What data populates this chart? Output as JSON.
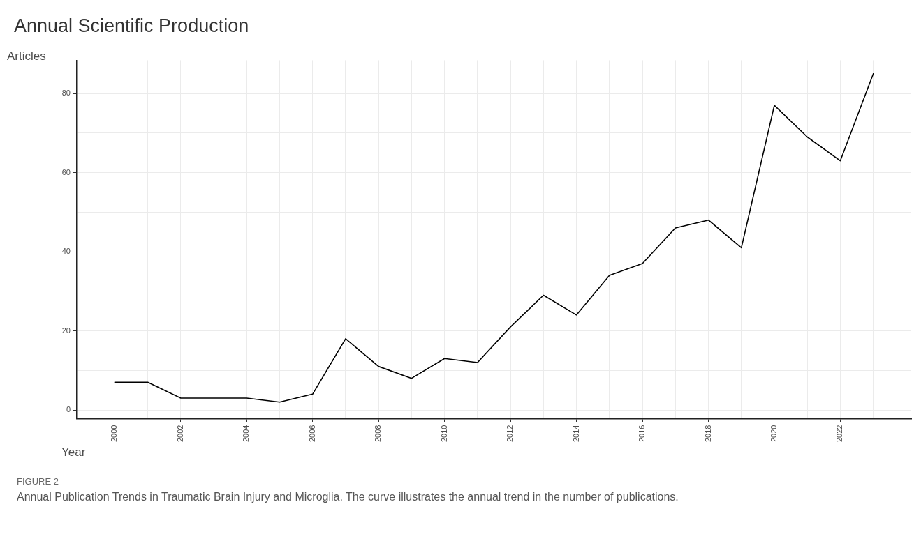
{
  "chart_data": {
    "type": "line",
    "title": "Annual Scientific Production",
    "xlabel": "Year",
    "ylabel": "Articles",
    "x": [
      2000,
      2001,
      2002,
      2003,
      2004,
      2005,
      2006,
      2007,
      2008,
      2009,
      2010,
      2011,
      2012,
      2013,
      2014,
      2015,
      2016,
      2017,
      2018,
      2019,
      2020,
      2021,
      2022,
      2023
    ],
    "series": [
      {
        "color": "#000000",
        "values": [
          7,
          7,
          3,
          3,
          3,
          2,
          4,
          18,
          11,
          8,
          13,
          12,
          21,
          29,
          24,
          34,
          37,
          46,
          48,
          41,
          77,
          69,
          63,
          85
        ]
      }
    ],
    "xlim": [
      1998.85,
      2024.15
    ],
    "xticks": [
      {
        "value": 1999,
        "label": null
      },
      2000,
      {
        "value": 2001,
        "label": null
      },
      2002,
      {
        "value": 2003,
        "label": null
      },
      2004,
      {
        "value": 2005,
        "label": null
      },
      2006,
      {
        "value": 2007,
        "label": null
      },
      2008,
      {
        "value": 2009,
        "label": null
      },
      2010,
      {
        "value": 2011,
        "label": null
      },
      2012,
      {
        "value": 2013,
        "label": null
      },
      2014,
      {
        "value": 2015,
        "label": null
      },
      2016,
      {
        "value": 2017,
        "label": null
      },
      2018,
      {
        "value": 2019,
        "label": null
      },
      2020,
      {
        "value": 2021,
        "label": null
      },
      2022,
      {
        "value": 2023,
        "label": null
      },
      {
        "value": 2024,
        "label": null
      }
    ],
    "ylim": [
      -2.2,
      88.4
    ],
    "yticks": [
      0,
      {
        "value": 10,
        "label": null
      },
      20,
      {
        "value": 30,
        "label": null
      },
      40,
      {
        "value": 50,
        "label": null
      },
      60,
      {
        "value": 70,
        "label": null
      },
      80
    ],
    "grid": true,
    "legend": false,
    "marker": "none",
    "line_style": "solid",
    "annotations": [
      "FIGURE 2",
      "Annual Publication Trends in Traumatic Brain Injury and Microglia. The curve illustrates the annual trend in the number of publications."
    ]
  }
}
